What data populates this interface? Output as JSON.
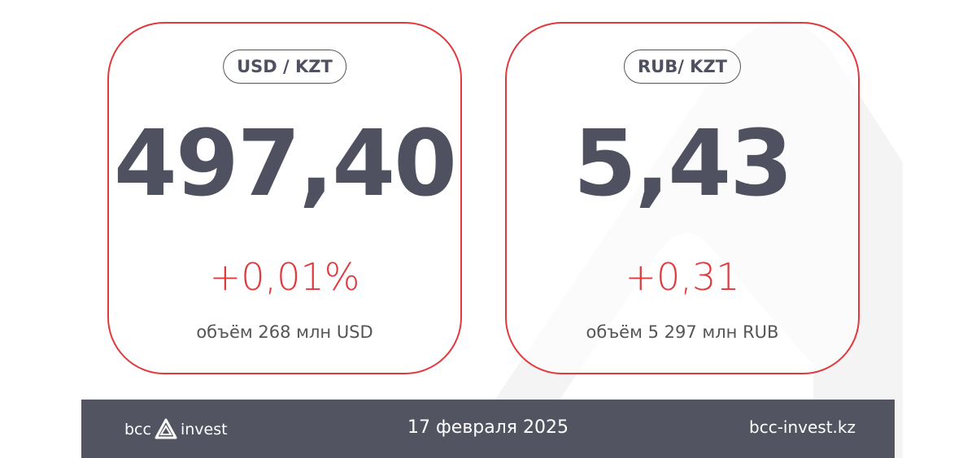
{
  "cards": [
    {
      "pair": "USD / KZT",
      "rate": "497,40",
      "change": "+0,01%",
      "volume": "объём 268 млн USD"
    },
    {
      "pair": "RUB/ KZT",
      "rate": "5,43",
      "change": "+0,31",
      "volume": "объём 5 297 млн RUB"
    }
  ],
  "footer": {
    "logo_left": "bcc",
    "logo_right": "invest",
    "date": "17 февраля 2025",
    "site": "bcc-invest.kz"
  },
  "colors": {
    "accent": "#e0393e",
    "text": "#4f5160",
    "footer": "#535461"
  }
}
